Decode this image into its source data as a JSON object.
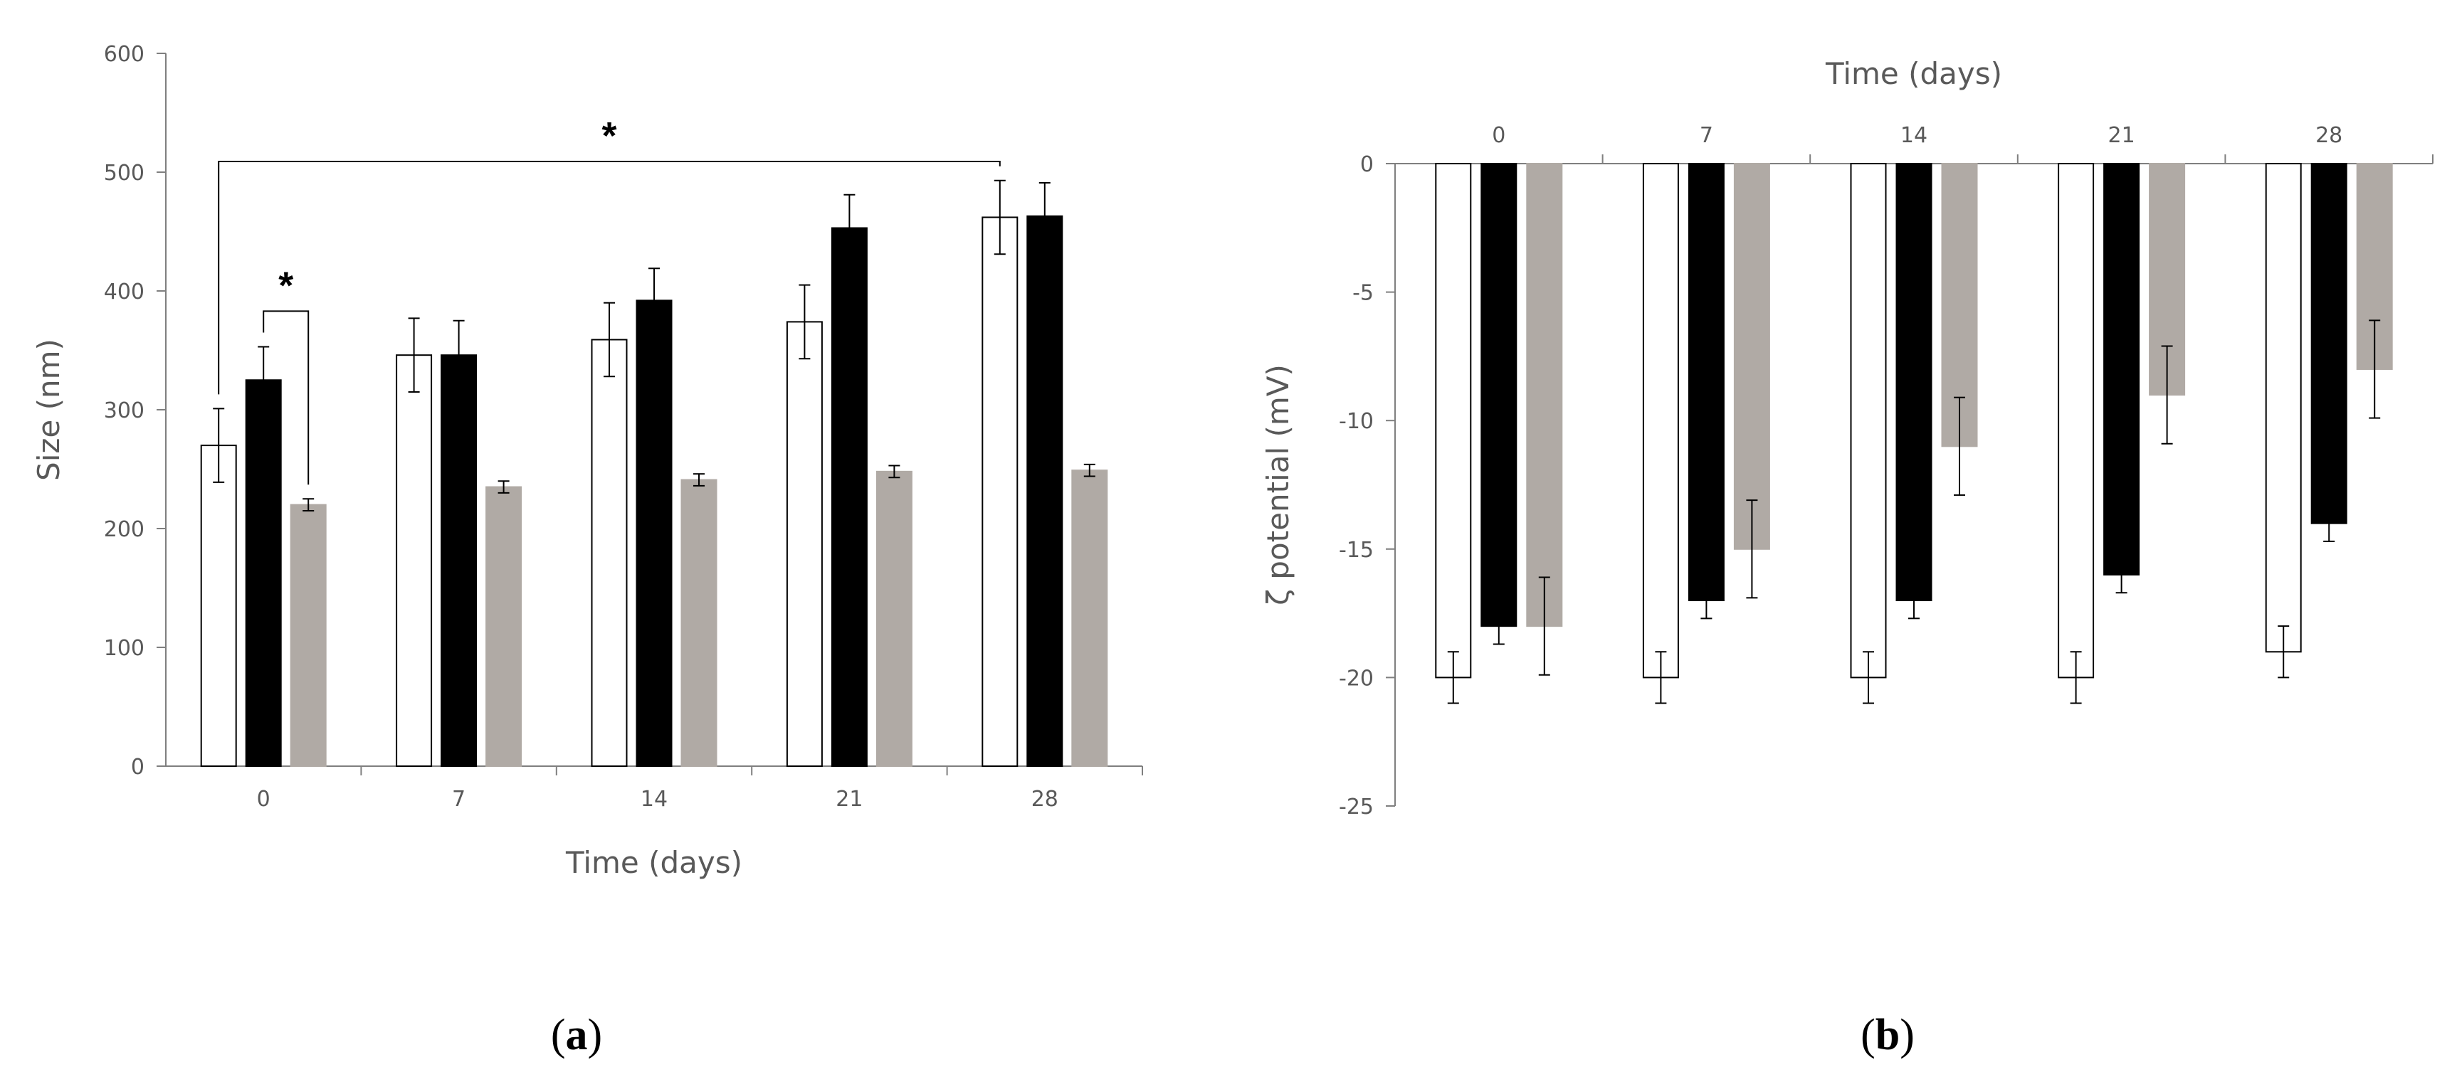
{
  "colors": {
    "series1": "#ffffff",
    "series2": "#000000",
    "series3": "#b0aaa5",
    "axis": "#7f7f7f",
    "text": "#595959"
  },
  "chart_data": [
    {
      "type": "bar",
      "panel": "a",
      "panel_label": "(a)",
      "title": "",
      "xlabel": "Time (days)",
      "ylabel": "Size (nm)",
      "ylim": [
        0,
        600
      ],
      "yticks": [
        0,
        100,
        200,
        300,
        400,
        500,
        600
      ],
      "categories": [
        "0",
        "7",
        "14",
        "21",
        "28"
      ],
      "grid": false,
      "series": [
        {
          "values": [
            270,
            346,
            359,
            374,
            462
          ],
          "errors": [
            31,
            31,
            31,
            31,
            31
          ]
        },
        {
          "values": [
            325,
            346,
            392,
            453,
            463
          ],
          "errors": [
            28,
            29,
            27,
            28,
            28
          ]
        },
        {
          "values": [
            220,
            235,
            241,
            248,
            249
          ],
          "errors": [
            5,
            5,
            5,
            5,
            5
          ]
        }
      ],
      "annotations": [
        {
          "label": "*",
          "from": {
            "category": "0",
            "series": 0
          },
          "to": {
            "category": "28",
            "series": 0
          },
          "y": 509
        },
        {
          "label": "*",
          "from": {
            "category": "0",
            "series": 1
          },
          "to": {
            "category": "0",
            "series": 2
          },
          "y": 383
        }
      ]
    },
    {
      "type": "bar",
      "panel": "b",
      "panel_label": "(b)",
      "title": "",
      "xlabel": "Time (days)",
      "xaxis_position": "top",
      "ylabel": "ζ potential (mV)",
      "ylim": [
        -25,
        0
      ],
      "yticks": [
        0,
        -5,
        -10,
        -15,
        -20,
        -25
      ],
      "categories": [
        "0",
        "7",
        "14",
        "21",
        "28"
      ],
      "grid": false,
      "series": [
        {
          "values": [
            -20,
            -20,
            -20,
            -20,
            -19
          ],
          "errors": [
            1,
            1,
            1,
            1,
            1
          ]
        },
        {
          "values": [
            -18,
            -17,
            -17,
            -16,
            -14
          ],
          "errors": [
            0.7,
            0.7,
            0.7,
            0.7,
            0.7
          ]
        },
        {
          "values": [
            -18,
            -15,
            -11,
            -9,
            -8
          ],
          "errors": [
            1.9,
            1.9,
            1.9,
            1.9,
            1.9
          ]
        }
      ]
    }
  ]
}
